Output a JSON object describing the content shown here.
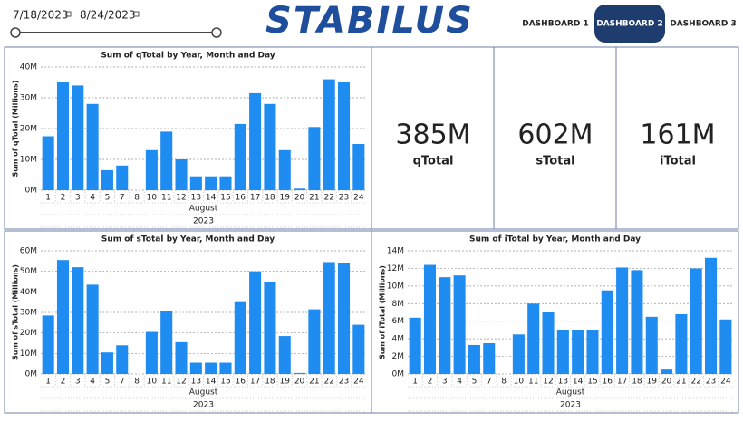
{
  "header": {
    "date_start": "7/18/2023",
    "date_end": "8/24/2023",
    "logo": "STABILUS",
    "nav": [
      "DASHBOARD 1",
      "DASHBOARD 2",
      "DASHBOARD 3"
    ]
  },
  "kpis": [
    {
      "value": "385M",
      "label": "qTotal"
    },
    {
      "value": "602M",
      "label": "sTotal"
    },
    {
      "value": "161M",
      "label": "iTotal"
    }
  ],
  "charts": [
    {
      "type": "bar",
      "title": "Sum of qTotal by Year, Month and Day",
      "y_label": "Sum of qTotal (Millions)",
      "x_label": "August",
      "x_group": "2023",
      "color": "#1e8cf0",
      "categories": [
        "1",
        "2",
        "3",
        "4",
        "5",
        "7",
        "8",
        "10",
        "11",
        "12",
        "13",
        "14",
        "15",
        "16",
        "17",
        "18",
        "19",
        "20",
        "21",
        "22",
        "23",
        "24"
      ],
      "values": [
        17.5,
        35,
        34,
        28,
        6.5,
        8,
        null,
        13,
        19,
        10,
        4.5,
        4.5,
        4.5,
        21.5,
        31.5,
        28,
        13,
        0.5,
        20.5,
        36,
        35,
        15
      ],
      "ylim": [
        0,
        40
      ],
      "yticks": [
        {
          "value": 0,
          "label": "0M"
        },
        {
          "value": 10,
          "label": "10M"
        },
        {
          "value": 20,
          "label": "20M"
        },
        {
          "value": 30,
          "label": "30M"
        },
        {
          "value": 40,
          "label": "40M"
        }
      ]
    },
    {
      "type": "bar",
      "title": "Sum of sTotal by Year, Month and Day",
      "y_label": "Sum of sTotal (Millions)",
      "x_label": "August",
      "x_group": "2023",
      "color": "#1e8cf0",
      "categories": [
        "1",
        "2",
        "3",
        "4",
        "5",
        "7",
        "8",
        "10",
        "11",
        "12",
        "13",
        "14",
        "15",
        "16",
        "17",
        "18",
        "19",
        "20",
        "21",
        "22",
        "23",
        "24"
      ],
      "values": [
        28.5,
        55.5,
        52,
        43.5,
        10.5,
        14,
        null,
        20.5,
        30.5,
        15.5,
        5.5,
        5.5,
        5.5,
        35,
        50,
        45,
        18.5,
        0.5,
        31.5,
        54.5,
        54,
        24
      ],
      "ylim": [
        0,
        60
      ],
      "yticks": [
        {
          "value": 0,
          "label": "0M"
        },
        {
          "value": 10,
          "label": "10M"
        },
        {
          "value": 20,
          "label": "20M"
        },
        {
          "value": 30,
          "label": "30M"
        },
        {
          "value": 40,
          "label": "40M"
        },
        {
          "value": 50,
          "label": "50M"
        },
        {
          "value": 60,
          "label": "60M"
        }
      ]
    },
    {
      "type": "bar",
      "title": "Sum of iTotal by Year, Month and Day",
      "y_label": "Sum of iTotal (Millions)",
      "x_label": "August",
      "x_group": "2023",
      "color": "#1e8cf0",
      "categories": [
        "1",
        "2",
        "3",
        "4",
        "5",
        "7",
        "8",
        "10",
        "11",
        "12",
        "13",
        "14",
        "15",
        "16",
        "17",
        "18",
        "19",
        "20",
        "21",
        "22",
        "23",
        "24"
      ],
      "values": [
        6.4,
        12.4,
        11,
        11.2,
        3.3,
        3.5,
        null,
        4.5,
        8,
        7,
        5,
        5,
        5,
        9.5,
        12.1,
        11.8,
        6.5,
        0.5,
        6.8,
        12,
        13.2,
        6.2
      ],
      "ylim": [
        0,
        14
      ],
      "yticks": [
        {
          "value": 0,
          "label": "0M"
        },
        {
          "value": 2,
          "label": "2M"
        },
        {
          "value": 4,
          "label": "4M"
        },
        {
          "value": 6,
          "label": "6M"
        },
        {
          "value": 8,
          "label": "8M"
        },
        {
          "value": 10,
          "label": "10M"
        },
        {
          "value": 12,
          "label": "12M"
        },
        {
          "value": 14,
          "label": "14M"
        }
      ]
    }
  ]
}
